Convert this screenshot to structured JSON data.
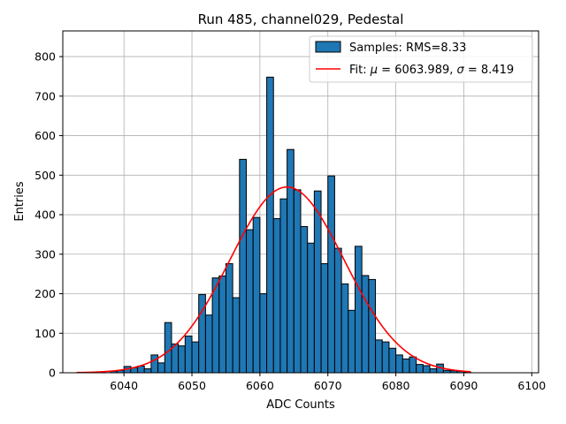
{
  "chart_data": {
    "type": "bar",
    "title": "Run 485, channel029, Pedestal",
    "xlabel": "ADC Counts",
    "ylabel": "Entries",
    "xlim": [
      6031,
      6101
    ],
    "ylim": [
      0,
      865
    ],
    "xticks": [
      6040,
      6050,
      6060,
      6070,
      6080,
      6090,
      6100
    ],
    "yticks": [
      0,
      100,
      200,
      300,
      400,
      500,
      600,
      700,
      800
    ],
    "grid": true,
    "legend_position": "top-right",
    "bin_width": 1,
    "series": [
      {
        "name": "Samples: RMS=8.33",
        "kind": "histogram",
        "color": "#1f77b4",
        "edge_color": "#000000",
        "bins": [
          [
            6038,
            4
          ],
          [
            6039,
            6
          ],
          [
            6040,
            16
          ],
          [
            6041,
            13
          ],
          [
            6042,
            17
          ],
          [
            6043,
            10
          ],
          [
            6044,
            45
          ],
          [
            6045,
            25
          ],
          [
            6046,
            127
          ],
          [
            6047,
            73
          ],
          [
            6048,
            68
          ],
          [
            6049,
            93
          ],
          [
            6050,
            78
          ],
          [
            6051,
            198
          ],
          [
            6052,
            146
          ],
          [
            6053,
            240
          ],
          [
            6054,
            245
          ],
          [
            6055,
            276
          ],
          [
            6056,
            190
          ],
          [
            6057,
            540
          ],
          [
            6058,
            362
          ],
          [
            6059,
            393
          ],
          [
            6060,
            200
          ],
          [
            6061,
            748
          ],
          [
            6062,
            390
          ],
          [
            6063,
            440
          ],
          [
            6064,
            565
          ],
          [
            6065,
            463
          ],
          [
            6066,
            370
          ],
          [
            6067,
            328
          ],
          [
            6068,
            460
          ],
          [
            6069,
            276
          ],
          [
            6070,
            498
          ],
          [
            6071,
            315
          ],
          [
            6072,
            225
          ],
          [
            6073,
            158
          ],
          [
            6074,
            320
          ],
          [
            6075,
            246
          ],
          [
            6076,
            236
          ],
          [
            6077,
            83
          ],
          [
            6078,
            78
          ],
          [
            6079,
            62
          ],
          [
            6080,
            45
          ],
          [
            6081,
            35
          ],
          [
            6082,
            40
          ],
          [
            6083,
            21
          ],
          [
            6084,
            18
          ],
          [
            6085,
            10
          ],
          [
            6086,
            22
          ],
          [
            6087,
            6
          ],
          [
            6088,
            5
          ],
          [
            6089,
            4
          ],
          [
            6090,
            2
          ]
        ]
      },
      {
        "name": "Fit: μ = 6063.989, σ = 8.419",
        "name_parts": [
          "Fit: ",
          "μ",
          " = 6063.989, ",
          "σ",
          " = 8.419"
        ],
        "kind": "gaussian",
        "color": "#ff0000",
        "mu": 6063.989,
        "sigma": 8.419,
        "amplitude": 470,
        "x_range": [
          6033,
          6091
        ]
      }
    ]
  }
}
